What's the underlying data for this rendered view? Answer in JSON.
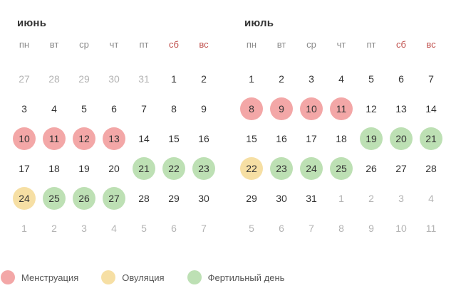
{
  "colors": {
    "menstruation": "#f3a7a7",
    "ovulation": "#f6dfa4",
    "fertile": "#bde0b4",
    "weekend_header": "#c0504d",
    "muted_day": "#b3b3b3"
  },
  "weekdays": [
    "пн",
    "вт",
    "ср",
    "чт",
    "пт",
    "сб",
    "вс"
  ],
  "months": [
    {
      "name": "июнь",
      "weeks": [
        [
          {
            "d": "27",
            "o": true
          },
          {
            "d": "28",
            "o": true
          },
          {
            "d": "29",
            "o": true
          },
          {
            "d": "30",
            "o": true
          },
          {
            "d": "31",
            "o": true
          },
          {
            "d": "1"
          },
          {
            "d": "2"
          }
        ],
        [
          {
            "d": "3"
          },
          {
            "d": "4"
          },
          {
            "d": "5"
          },
          {
            "d": "6"
          },
          {
            "d": "7"
          },
          {
            "d": "8"
          },
          {
            "d": "9"
          }
        ],
        [
          {
            "d": "10",
            "t": "menstruation"
          },
          {
            "d": "11",
            "t": "menstruation"
          },
          {
            "d": "12",
            "t": "menstruation"
          },
          {
            "d": "13",
            "t": "menstruation"
          },
          {
            "d": "14"
          },
          {
            "d": "15"
          },
          {
            "d": "16"
          }
        ],
        [
          {
            "d": "17"
          },
          {
            "d": "18"
          },
          {
            "d": "19"
          },
          {
            "d": "20"
          },
          {
            "d": "21",
            "t": "fertile"
          },
          {
            "d": "22",
            "t": "fertile"
          },
          {
            "d": "23",
            "t": "fertile"
          }
        ],
        [
          {
            "d": "24",
            "t": "ovulation"
          },
          {
            "d": "25",
            "t": "fertile"
          },
          {
            "d": "26",
            "t": "fertile"
          },
          {
            "d": "27",
            "t": "fertile"
          },
          {
            "d": "28"
          },
          {
            "d": "29"
          },
          {
            "d": "30"
          }
        ],
        [
          {
            "d": "1",
            "o": true
          },
          {
            "d": "2",
            "o": true
          },
          {
            "d": "3",
            "o": true
          },
          {
            "d": "4",
            "o": true
          },
          {
            "d": "5",
            "o": true
          },
          {
            "d": "6",
            "o": true
          },
          {
            "d": "7",
            "o": true
          }
        ]
      ]
    },
    {
      "name": "июль",
      "weeks": [
        [
          {
            "d": "1"
          },
          {
            "d": "2"
          },
          {
            "d": "3"
          },
          {
            "d": "4"
          },
          {
            "d": "5"
          },
          {
            "d": "6"
          },
          {
            "d": "7"
          }
        ],
        [
          {
            "d": "8",
            "t": "menstruation"
          },
          {
            "d": "9",
            "t": "menstruation"
          },
          {
            "d": "10",
            "t": "menstruation"
          },
          {
            "d": "11",
            "t": "menstruation"
          },
          {
            "d": "12"
          },
          {
            "d": "13"
          },
          {
            "d": "14"
          }
        ],
        [
          {
            "d": "15"
          },
          {
            "d": "16"
          },
          {
            "d": "17"
          },
          {
            "d": "18"
          },
          {
            "d": "19",
            "t": "fertile"
          },
          {
            "d": "20",
            "t": "fertile"
          },
          {
            "d": "21",
            "t": "fertile"
          }
        ],
        [
          {
            "d": "22",
            "t": "ovulation"
          },
          {
            "d": "23",
            "t": "fertile"
          },
          {
            "d": "24",
            "t": "fertile"
          },
          {
            "d": "25",
            "t": "fertile"
          },
          {
            "d": "26"
          },
          {
            "d": "27"
          },
          {
            "d": "28"
          }
        ],
        [
          {
            "d": "29"
          },
          {
            "d": "30"
          },
          {
            "d": "31"
          },
          {
            "d": "1",
            "o": true
          },
          {
            "d": "2",
            "o": true
          },
          {
            "d": "3",
            "o": true
          },
          {
            "d": "4",
            "o": true
          }
        ],
        [
          {
            "d": "5",
            "o": true
          },
          {
            "d": "6",
            "o": true
          },
          {
            "d": "7",
            "o": true
          },
          {
            "d": "8",
            "o": true
          },
          {
            "d": "9",
            "o": true
          },
          {
            "d": "10",
            "o": true
          },
          {
            "d": "11",
            "o": true
          }
        ]
      ]
    }
  ],
  "legend": [
    {
      "key": "menstruation",
      "label": "Менструация"
    },
    {
      "key": "ovulation",
      "label": "Овуляция"
    },
    {
      "key": "fertile",
      "label": "Фертильный день"
    }
  ]
}
